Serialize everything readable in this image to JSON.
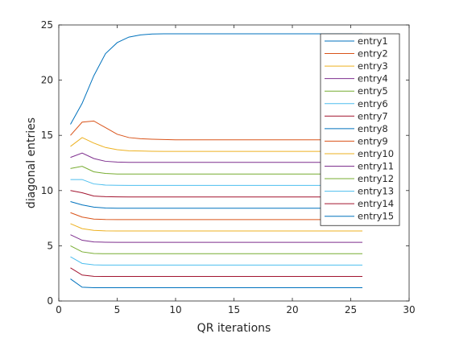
{
  "chart_data": {
    "type": "line",
    "title": "",
    "xlabel": "QR iterations",
    "ylabel": "diagonal entries",
    "xlim": [
      0,
      30
    ],
    "ylim": [
      0,
      25
    ],
    "xticks": [
      0,
      5,
      10,
      15,
      20,
      25,
      30
    ],
    "yticks": [
      0,
      5,
      10,
      15,
      20,
      25
    ],
    "grid": false,
    "legend_position": "top-right",
    "x": [
      1,
      2,
      3,
      4,
      5,
      6,
      7,
      8,
      9,
      10,
      11,
      12,
      13,
      14,
      15,
      16,
      17,
      18,
      19,
      20,
      21,
      22,
      23,
      24,
      25,
      26
    ],
    "series": [
      {
        "name": "entry1",
        "color": "#0072BD",
        "values": [
          16,
          17.9,
          20.4,
          22.4,
          23.4,
          23.9,
          24.1,
          24.18,
          24.2,
          24.2,
          24.2,
          24.2,
          24.2,
          24.2,
          24.2,
          24.2,
          24.2,
          24.2,
          24.2,
          24.2,
          24.2,
          24.2,
          24.2,
          24.2,
          24.2,
          24.2
        ]
      },
      {
        "name": "entry2",
        "color": "#D95319",
        "values": [
          15,
          16.2,
          16.3,
          15.7,
          15.1,
          14.8,
          14.7,
          14.65,
          14.62,
          14.6,
          14.6,
          14.6,
          14.6,
          14.6,
          14.6,
          14.6,
          14.6,
          14.6,
          14.6,
          14.6,
          14.6,
          14.6,
          14.6,
          14.6,
          14.6,
          14.6
        ]
      },
      {
        "name": "entry3",
        "color": "#EDB120",
        "values": [
          14,
          14.8,
          14.3,
          13.9,
          13.7,
          13.6,
          13.58,
          13.56,
          13.55,
          13.55,
          13.55,
          13.55,
          13.55,
          13.55,
          13.55,
          13.55,
          13.55,
          13.55,
          13.55,
          13.55,
          13.55,
          13.55,
          13.55,
          13.55,
          13.55,
          13.55
        ]
      },
      {
        "name": "entry4",
        "color": "#7E2F8E",
        "values": [
          13,
          13.4,
          12.9,
          12.65,
          12.58,
          12.55,
          12.55,
          12.55,
          12.55,
          12.55,
          12.55,
          12.55,
          12.55,
          12.55,
          12.55,
          12.55,
          12.55,
          12.55,
          12.55,
          12.55,
          12.55,
          12.55,
          12.55,
          12.55,
          12.55,
          12.55
        ]
      },
      {
        "name": "entry5",
        "color": "#77AC30",
        "values": [
          12,
          12.2,
          11.7,
          11.55,
          11.5,
          11.5,
          11.5,
          11.5,
          11.5,
          11.5,
          11.5,
          11.5,
          11.5,
          11.5,
          11.5,
          11.5,
          11.5,
          11.5,
          11.5,
          11.5,
          11.5,
          11.5,
          11.5,
          11.5,
          11.5,
          11.5
        ]
      },
      {
        "name": "entry6",
        "color": "#4DBEEE",
        "values": [
          11,
          11,
          10.6,
          10.5,
          10.48,
          10.47,
          10.47,
          10.47,
          10.47,
          10.47,
          10.47,
          10.47,
          10.47,
          10.47,
          10.47,
          10.47,
          10.47,
          10.47,
          10.47,
          10.47,
          10.47,
          10.47,
          10.47,
          10.47,
          10.47,
          10.47
        ]
      },
      {
        "name": "entry7",
        "color": "#A2142F",
        "values": [
          10,
          9.8,
          9.5,
          9.45,
          9.43,
          9.42,
          9.42,
          9.42,
          9.42,
          9.42,
          9.42,
          9.42,
          9.42,
          9.42,
          9.42,
          9.42,
          9.42,
          9.42,
          9.42,
          9.42,
          9.42,
          9.42,
          9.42,
          9.42,
          9.42,
          9.42
        ]
      },
      {
        "name": "entry8",
        "color": "#0072BD",
        "values": [
          9,
          8.7,
          8.5,
          8.42,
          8.4,
          8.4,
          8.4,
          8.4,
          8.4,
          8.4,
          8.4,
          8.4,
          8.4,
          8.4,
          8.4,
          8.4,
          8.4,
          8.4,
          8.4,
          8.4,
          8.4,
          8.4,
          8.4,
          8.4,
          8.4,
          8.4
        ]
      },
      {
        "name": "entry9",
        "color": "#D95319",
        "values": [
          8,
          7.6,
          7.42,
          7.38,
          7.37,
          7.37,
          7.37,
          7.37,
          7.37,
          7.37,
          7.37,
          7.37,
          7.37,
          7.37,
          7.37,
          7.37,
          7.37,
          7.37,
          7.37,
          7.37,
          7.37,
          7.37,
          7.37,
          7.37,
          7.37,
          7.37
        ]
      },
      {
        "name": "entry10",
        "color": "#EDB120",
        "values": [
          7,
          6.55,
          6.4,
          6.35,
          6.34,
          6.34,
          6.34,
          6.34,
          6.34,
          6.34,
          6.34,
          6.34,
          6.34,
          6.34,
          6.34,
          6.34,
          6.34,
          6.34,
          6.34,
          6.34,
          6.34,
          6.34,
          6.34,
          6.34,
          6.34,
          6.34
        ]
      },
      {
        "name": "entry11",
        "color": "#7E2F8E",
        "values": [
          6,
          5.5,
          5.35,
          5.32,
          5.31,
          5.31,
          5.31,
          5.31,
          5.31,
          5.31,
          5.31,
          5.31,
          5.31,
          5.31,
          5.31,
          5.31,
          5.31,
          5.31,
          5.31,
          5.31,
          5.31,
          5.31,
          5.31,
          5.31,
          5.31,
          5.31
        ]
      },
      {
        "name": "entry12",
        "color": "#77AC30",
        "values": [
          5,
          4.45,
          4.3,
          4.28,
          4.28,
          4.28,
          4.28,
          4.28,
          4.28,
          4.28,
          4.28,
          4.28,
          4.28,
          4.28,
          4.28,
          4.28,
          4.28,
          4.28,
          4.28,
          4.28,
          4.28,
          4.28,
          4.28,
          4.28,
          4.28,
          4.28
        ]
      },
      {
        "name": "entry13",
        "color": "#4DBEEE",
        "values": [
          4,
          3.4,
          3.27,
          3.25,
          3.25,
          3.25,
          3.25,
          3.25,
          3.25,
          3.25,
          3.25,
          3.25,
          3.25,
          3.25,
          3.25,
          3.25,
          3.25,
          3.25,
          3.25,
          3.25,
          3.25,
          3.25,
          3.25,
          3.25,
          3.25,
          3.25
        ]
      },
      {
        "name": "entry14",
        "color": "#A2142F",
        "values": [
          3,
          2.35,
          2.23,
          2.22,
          2.22,
          2.22,
          2.22,
          2.22,
          2.22,
          2.22,
          2.22,
          2.22,
          2.22,
          2.22,
          2.22,
          2.22,
          2.22,
          2.22,
          2.22,
          2.22,
          2.22,
          2.22,
          2.22,
          2.22,
          2.22,
          2.22
        ]
      },
      {
        "name": "entry15",
        "color": "#0072BD",
        "values": [
          2,
          1.25,
          1.2,
          1.2,
          1.2,
          1.2,
          1.2,
          1.2,
          1.2,
          1.2,
          1.2,
          1.2,
          1.2,
          1.2,
          1.2,
          1.2,
          1.2,
          1.2,
          1.2,
          1.2,
          1.2,
          1.2,
          1.2,
          1.2,
          1.2,
          1.2
        ]
      }
    ]
  }
}
